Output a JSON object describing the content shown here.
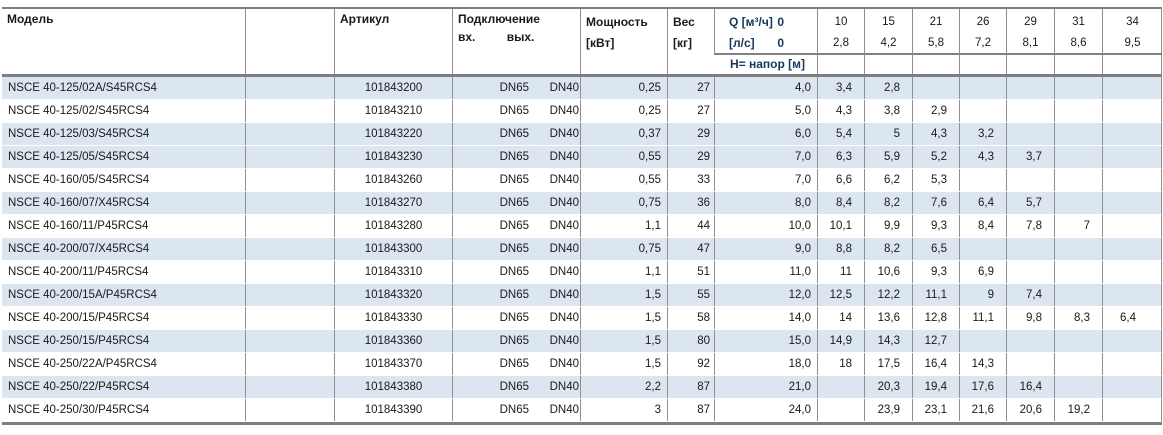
{
  "colors": {
    "row_shade": "#dce6f1",
    "grid_line": "#8f8f8f",
    "q_header_accent": "#17365d"
  },
  "table": {
    "headers": {
      "model": "Модель",
      "article": "Артикул",
      "connection": "Подключение",
      "connection_in": "вх.",
      "connection_out": "вых.",
      "power_line1": "Мощность",
      "power_line2": "[кВт]",
      "weight_line1": "Вес",
      "weight_line2": "[кг]",
      "q_label": "Q [м³/ч]",
      "q_zero": "0",
      "ls_label": "[л/с]",
      "ls_zero": "0",
      "head_row_label": "H= напор [м]",
      "flow_columns": [
        {
          "m3h": "10",
          "ls": "2,8"
        },
        {
          "m3h": "15",
          "ls": "4,2"
        },
        {
          "m3h": "21",
          "ls": "5,8"
        },
        {
          "m3h": "26",
          "ls": "7,2"
        },
        {
          "m3h": "29",
          "ls": "8,1"
        },
        {
          "m3h": "31",
          "ls": "8,6"
        },
        {
          "m3h": "34",
          "ls": "9,5"
        }
      ]
    },
    "rows": [
      {
        "model": "NSCE 40-125/02A/S45RCS4",
        "article": "101843200",
        "inlet": "DN65",
        "outlet": "DN40",
        "power": "0,25",
        "weight": "27",
        "heads": [
          "4,0",
          "3,4",
          "2,8",
          "",
          "",
          "",
          "",
          ""
        ],
        "shaded": true
      },
      {
        "model": "NSCE 40-125/02/S45RCS4",
        "article": "101843210",
        "inlet": "DN65",
        "outlet": "DN40",
        "power": "0,25",
        "weight": "27",
        "heads": [
          "5,0",
          "4,3",
          "3,8",
          "2,9",
          "",
          "",
          "",
          ""
        ],
        "shaded": false
      },
      {
        "model": "NSCE 40-125/03/S45RCS4",
        "article": "101843220",
        "inlet": "DN65",
        "outlet": "DN40",
        "power": "0,37",
        "weight": "29",
        "heads": [
          "6,0",
          "5,4",
          "5",
          "4,3",
          "3,2",
          "",
          "",
          ""
        ],
        "shaded": true
      },
      {
        "model": "NSCE 40-125/05/S45RCS4",
        "article": "101843230",
        "inlet": "DN65",
        "outlet": "DN40",
        "power": "0,55",
        "weight": "29",
        "heads": [
          "7,0",
          "6,3",
          "5,9",
          "5,2",
          "4,3",
          "3,7",
          "",
          ""
        ],
        "shaded": true
      },
      {
        "model": "NSCE 40-160/05/S45RCS4",
        "article": "101843260",
        "inlet": "DN65",
        "outlet": "DN40",
        "power": "0,55",
        "weight": "33",
        "heads": [
          "7,0",
          "6,6",
          "6,2",
          "5,3",
          "",
          "",
          "",
          ""
        ],
        "shaded": false
      },
      {
        "model": "NSCE 40-160/07/X45RCS4",
        "article": "101843270",
        "inlet": "DN65",
        "outlet": "DN40",
        "power": "0,75",
        "weight": "36",
        "heads": [
          "8,0",
          "8,4",
          "8,2",
          "7,6",
          "6,4",
          "5,7",
          "",
          ""
        ],
        "shaded": true
      },
      {
        "model": "NSCE 40-160/11/P45RCS4",
        "article": "101843280",
        "inlet": "DN65",
        "outlet": "DN40",
        "power": "1,1",
        "weight": "44",
        "heads": [
          "10,0",
          "10,1",
          "9,9",
          "9,3",
          "8,4",
          "7,8",
          "7",
          ""
        ],
        "shaded": false
      },
      {
        "model": "NSCE 40-200/07/X45RCS4",
        "article": "101843300",
        "inlet": "DN65",
        "outlet": "DN40",
        "power": "0,75",
        "weight": "47",
        "heads": [
          "9,0",
          "8,8",
          "8,2",
          "6,5",
          "",
          "",
          "",
          ""
        ],
        "shaded": true
      },
      {
        "model": "NSCE 40-200/11/P45RCS4",
        "article": "101843310",
        "inlet": "DN65",
        "outlet": "DN40",
        "power": "1,1",
        "weight": "51",
        "heads": [
          "11,0",
          "11",
          "10,6",
          "9,3",
          "6,9",
          "",
          "",
          ""
        ],
        "shaded": false
      },
      {
        "model": "NSCE 40-200/15A/P45RCS4",
        "article": "101843320",
        "inlet": "DN65",
        "outlet": "DN40",
        "power": "1,5",
        "weight": "55",
        "heads": [
          "12,0",
          "12,5",
          "12,2",
          "11,1",
          "9",
          "7,4",
          "",
          ""
        ],
        "shaded": true
      },
      {
        "model": "NSCE 40-200/15/P45RCS4",
        "article": "101843330",
        "inlet": "DN65",
        "outlet": "DN40",
        "power": "1,5",
        "weight": "58",
        "heads": [
          "14,0",
          "14",
          "13,6",
          "12,8",
          "11,1",
          "9,8",
          "8,3",
          "6,4"
        ],
        "shaded": false
      },
      {
        "model": "NSCE 40-250/15/P45RCS4",
        "article": "101843360",
        "inlet": "DN65",
        "outlet": "DN40",
        "power": "1,5",
        "weight": "80",
        "heads": [
          "15,0",
          "14,9",
          "14,3",
          "12,7",
          "",
          "",
          "",
          ""
        ],
        "shaded": true
      },
      {
        "model": "NSCE 40-250/22A/P45RCS4",
        "article": "101843370",
        "inlet": "DN65",
        "outlet": "DN40",
        "power": "1,5",
        "weight": "92",
        "heads": [
          "18,0",
          "18",
          "17,5",
          "16,4",
          "14,3",
          "",
          "",
          ""
        ],
        "shaded": false
      },
      {
        "model": "NSCE 40-250/22/P45RCS4",
        "article": "101843380",
        "inlet": "DN65",
        "outlet": "DN40",
        "power": "2,2",
        "weight": "87",
        "heads": [
          "21,0",
          "",
          "20,3",
          "19,4",
          "17,6",
          "16,4",
          "",
          ""
        ],
        "shaded": true
      },
      {
        "model": "NSCE 40-250/30/P45RCS4",
        "article": "101843390",
        "inlet": "DN65",
        "outlet": "DN40",
        "power": "3",
        "weight": "87",
        "heads": [
          "24,0",
          "",
          "23,9",
          "23,1",
          "21,6",
          "20,6",
          "19,2",
          ""
        ],
        "shaded": false
      }
    ]
  }
}
